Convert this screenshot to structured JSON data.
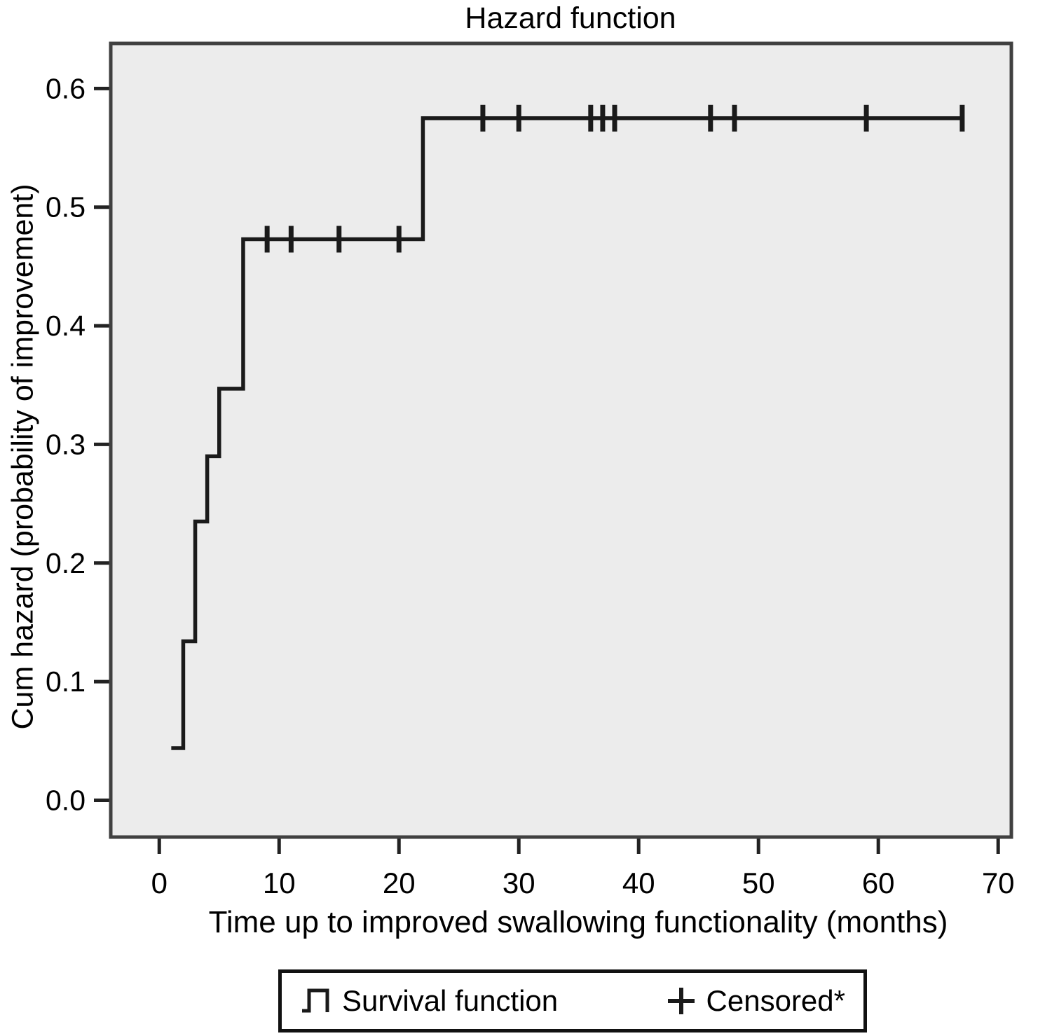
{
  "chart_data": {
    "type": "line",
    "subtype": "step-function-cumulative-hazard",
    "title": "Hazard function",
    "xlabel": "Time up to improved swallowing functionality (months)",
    "ylabel": "Cum hazard (probability of improvement)",
    "x_ticks": [
      "0",
      "10",
      "20",
      "30",
      "40",
      "50",
      "60",
      "70"
    ],
    "y_ticks": [
      "0.0",
      "0.1",
      "0.2",
      "0.3",
      "0.4",
      "0.5",
      "0.6"
    ],
    "xlim": [
      -4.05,
      71.1
    ],
    "ylim": [
      -0.031,
      0.638
    ],
    "grid": false,
    "legend_position": "below-plot",
    "series": [
      {
        "name": "Survival function",
        "style": "step",
        "points": [
          [
            1,
            0.044
          ],
          [
            2,
            0.134
          ],
          [
            3,
            0.235
          ],
          [
            4,
            0.29
          ],
          [
            5,
            0.347
          ],
          [
            7,
            0.473
          ],
          [
            22,
            0.575
          ],
          [
            67,
            0.575
          ]
        ]
      },
      {
        "name": "Censored*",
        "style": "plus-marks",
        "points": [
          [
            9,
            0.473
          ],
          [
            11,
            0.473
          ],
          [
            15,
            0.473
          ],
          [
            20,
            0.473
          ],
          [
            27,
            0.575
          ],
          [
            30,
            0.575
          ],
          [
            36,
            0.575
          ],
          [
            37,
            0.575
          ],
          [
            38,
            0.575
          ],
          [
            46,
            0.575
          ],
          [
            48,
            0.575
          ],
          [
            59,
            0.575
          ],
          [
            67,
            0.575
          ]
        ]
      }
    ],
    "legend": [
      {
        "icon": "step-line-icon",
        "label": "Survival function"
      },
      {
        "icon": "plus-icon",
        "label": "Censored*"
      }
    ],
    "colors": {
      "line": "#1a1a1a",
      "censored_marks": "#1a1a1a",
      "plot_background": "#ececec",
      "plot_border": "#404040",
      "tick": "#222222",
      "text": "#000000",
      "figure_background": "#ffffff",
      "legend_border": "#111111"
    }
  }
}
